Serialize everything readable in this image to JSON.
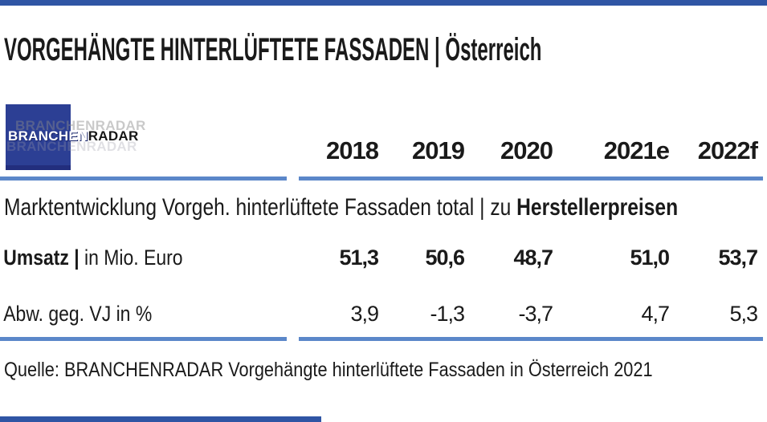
{
  "page": {
    "title": "VORGEHÄNGTE HINTERLÜFTETE FASSADEN | Österreich",
    "source": "Quelle: BRANCHENRADAR Vorgehängte hinterlüftete Fassaden in Österreich 2021"
  },
  "logo": {
    "part1": "BRANCHEN",
    "part2": "RADAR",
    "full": "BRANCHENRADAR"
  },
  "chart_data": {
    "type": "table",
    "title": "Marktentwicklung Vorgeh. hinterlüftete Fassaden total | zu Herstellerpreisen",
    "subtitle_regular": "Marktentwicklung Vorgeh. hinterlüftete Fassaden total | zu ",
    "subtitle_bold": "Herstellerpreisen",
    "columns": [
      "2018",
      "2019",
      "2020",
      "2021e",
      "2022f"
    ],
    "rows": [
      {
        "label_bold": "Umsatz | ",
        "label_regular": "in Mio. Euro",
        "values": [
          "51,3",
          "50,6",
          "48,7",
          "51,0",
          "53,7"
        ]
      },
      {
        "label_bold": "",
        "label_regular": "Abw. geg. VJ in %",
        "values": [
          "3,9",
          "-1,3",
          "-3,7",
          "4,7",
          "5,3"
        ]
      }
    ]
  },
  "colors": {
    "rule_blue": "#5b87c9",
    "logo_blue": "#2c3f94",
    "edge_bar_blue": "#2f55a4",
    "text": "#1a1a1a"
  }
}
